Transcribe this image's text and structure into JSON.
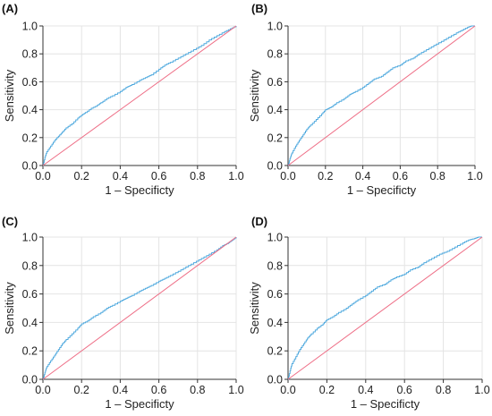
{
  "colors": {
    "roc": "#4fa9de",
    "reference": "#ee6e86",
    "grid": "#e4e4e4",
    "axis": "#333333"
  },
  "chart_data": [
    {
      "panel_label": "(A)",
      "type": "line",
      "xlabel": "1 – Specificty",
      "ylabel": "Sensitivity",
      "xlim": [
        0,
        1
      ],
      "ylim": [
        0,
        1
      ],
      "ticks": [
        "0.0",
        "0.2",
        "0.4",
        "0.6",
        "0.8",
        "1.0"
      ],
      "grid": true,
      "series": [
        {
          "role": "roc",
          "x": [
            0,
            0.01,
            0.02,
            0.04,
            0.06,
            0.08,
            0.1,
            0.12,
            0.15,
            0.18,
            0.2,
            0.22,
            0.25,
            0.28,
            0.3,
            0.33,
            0.36,
            0.4,
            0.43,
            0.46,
            0.5,
            0.53,
            0.56,
            0.6,
            0.63,
            0.66,
            0.7,
            0.74,
            0.78,
            0.82,
            0.86,
            0.9,
            0.94,
            0.97,
            1.0
          ],
          "y": [
            0,
            0.06,
            0.1,
            0.14,
            0.18,
            0.21,
            0.24,
            0.27,
            0.3,
            0.34,
            0.36,
            0.38,
            0.41,
            0.43,
            0.45,
            0.48,
            0.5,
            0.53,
            0.56,
            0.58,
            0.61,
            0.63,
            0.65,
            0.69,
            0.72,
            0.74,
            0.77,
            0.8,
            0.83,
            0.86,
            0.9,
            0.93,
            0.96,
            0.98,
            1.0
          ]
        },
        {
          "role": "reference",
          "x": [
            0,
            1
          ],
          "y": [
            0,
            1
          ]
        }
      ]
    },
    {
      "panel_label": "(B)",
      "type": "line",
      "xlabel": "1 – Specificty",
      "ylabel": "Sensitivity",
      "xlim": [
        0,
        1
      ],
      "ylim": [
        0,
        1
      ],
      "ticks": [
        "0.0",
        "0.2",
        "0.4",
        "0.6",
        "0.8",
        "1.0"
      ],
      "grid": true,
      "series": [
        {
          "role": "roc",
          "x": [
            0,
            0.01,
            0.02,
            0.04,
            0.06,
            0.08,
            0.1,
            0.12,
            0.15,
            0.18,
            0.2,
            0.23,
            0.26,
            0.3,
            0.33,
            0.36,
            0.4,
            0.43,
            0.46,
            0.5,
            0.53,
            0.56,
            0.6,
            0.63,
            0.67,
            0.7,
            0.74,
            0.78,
            0.82,
            0.86,
            0.9,
            0.93,
            0.96,
            0.98,
            1.0
          ],
          "y": [
            0,
            0.05,
            0.09,
            0.14,
            0.18,
            0.22,
            0.26,
            0.29,
            0.33,
            0.37,
            0.4,
            0.42,
            0.45,
            0.48,
            0.51,
            0.53,
            0.56,
            0.59,
            0.62,
            0.64,
            0.67,
            0.7,
            0.72,
            0.75,
            0.77,
            0.8,
            0.83,
            0.86,
            0.89,
            0.92,
            0.95,
            0.97,
            0.99,
            1.0,
            1.0
          ]
        },
        {
          "role": "reference",
          "x": [
            0,
            1
          ],
          "y": [
            0,
            1
          ]
        }
      ]
    },
    {
      "panel_label": "(C)",
      "type": "line",
      "xlabel": "1 – Specificty",
      "ylabel": "Sensitivity",
      "xlim": [
        0,
        1
      ],
      "ylim": [
        0,
        1
      ],
      "ticks": [
        "0.0",
        "0.2",
        "0.4",
        "0.6",
        "0.8",
        "1.0"
      ],
      "grid": true,
      "series": [
        {
          "role": "roc",
          "x": [
            0,
            0.01,
            0.02,
            0.04,
            0.06,
            0.08,
            0.1,
            0.12,
            0.15,
            0.18,
            0.2,
            0.23,
            0.26,
            0.3,
            0.33,
            0.36,
            0.4,
            0.43,
            0.46,
            0.5,
            0.53,
            0.56,
            0.6,
            0.63,
            0.66,
            0.7,
            0.74,
            0.78,
            0.82,
            0.86,
            0.9,
            0.93,
            0.96,
            0.98,
            1.0
          ],
          "y": [
            0,
            0.05,
            0.09,
            0.13,
            0.17,
            0.21,
            0.25,
            0.28,
            0.32,
            0.36,
            0.39,
            0.41,
            0.44,
            0.47,
            0.5,
            0.52,
            0.55,
            0.57,
            0.59,
            0.62,
            0.64,
            0.66,
            0.69,
            0.71,
            0.73,
            0.76,
            0.79,
            0.82,
            0.85,
            0.88,
            0.91,
            0.94,
            0.96,
            0.98,
            1.0
          ]
        },
        {
          "role": "reference",
          "x": [
            0,
            1
          ],
          "y": [
            0,
            1
          ]
        }
      ]
    },
    {
      "panel_label": "(D)",
      "type": "line",
      "xlabel": "1 – Specificty",
      "ylabel": "Sensitivity",
      "xlim": [
        0,
        1
      ],
      "ylim": [
        0,
        1
      ],
      "ticks": [
        "0.0",
        "0.2",
        "0.4",
        "0.6",
        "0.8",
        "1.0"
      ],
      "grid": true,
      "series": [
        {
          "role": "roc",
          "x": [
            0,
            0.01,
            0.02,
            0.04,
            0.06,
            0.08,
            0.1,
            0.12,
            0.15,
            0.18,
            0.2,
            0.23,
            0.26,
            0.3,
            0.33,
            0.36,
            0.4,
            0.43,
            0.46,
            0.5,
            0.53,
            0.56,
            0.6,
            0.63,
            0.67,
            0.7,
            0.74,
            0.78,
            0.82,
            0.86,
            0.9,
            0.93,
            0.96,
            0.98,
            1.0
          ],
          "y": [
            0,
            0.06,
            0.11,
            0.16,
            0.21,
            0.25,
            0.29,
            0.32,
            0.36,
            0.39,
            0.42,
            0.44,
            0.47,
            0.5,
            0.53,
            0.56,
            0.59,
            0.62,
            0.65,
            0.67,
            0.7,
            0.72,
            0.74,
            0.77,
            0.79,
            0.82,
            0.85,
            0.88,
            0.9,
            0.93,
            0.96,
            0.98,
            0.99,
            1.0,
            1.0
          ]
        },
        {
          "role": "reference",
          "x": [
            0,
            1
          ],
          "y": [
            0,
            1
          ]
        }
      ]
    }
  ]
}
